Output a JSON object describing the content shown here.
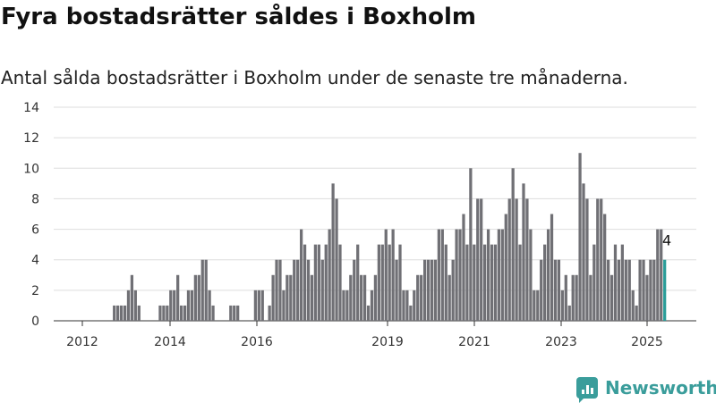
{
  "title": "Fyra bostadsrätter såldes i Boxholm",
  "subtitle": "Antal sålda bostadsrätter i Boxholm under de senaste tre månaderna.",
  "logo": {
    "text": "Newsworthy",
    "icon": "newsworthy-logo-icon"
  },
  "colors": {
    "bar": "#707075",
    "highlight": "#2a9d99",
    "grid": "#dddddd",
    "axis": "#333333"
  },
  "chart_data": {
    "type": "bar",
    "xlabel": "",
    "ylabel": "",
    "ylim": [
      0,
      14
    ],
    "yticks": [
      0,
      2,
      4,
      6,
      8,
      10,
      12,
      14
    ],
    "xticks": [
      "2012",
      "2014",
      "2016",
      "2019",
      "2021",
      "2023",
      "2025"
    ],
    "grid": true,
    "annotation": {
      "text": "4",
      "target": "last"
    },
    "highlight": "last",
    "series": [
      {
        "values": [
          0,
          0,
          0,
          0,
          0,
          0,
          0,
          0,
          0,
          0,
          0,
          0,
          0,
          0,
          0,
          0,
          1,
          1,
          1,
          1,
          2,
          3,
          2,
          1,
          0,
          0,
          0,
          0,
          0,
          1,
          1,
          1,
          2,
          2,
          3,
          1,
          1,
          2,
          2,
          3,
          3,
          4,
          4,
          2,
          1,
          0,
          0,
          0,
          0,
          1,
          1,
          1,
          0,
          0,
          0,
          0,
          2,
          2,
          2,
          0,
          1,
          3,
          4,
          4,
          2,
          3,
          3,
          4,
          4,
          6,
          5,
          4,
          3,
          5,
          5,
          4,
          5,
          6,
          9,
          8,
          5,
          2,
          2,
          3,
          4,
          5,
          3,
          3,
          1,
          2,
          3,
          5,
          5,
          6,
          5,
          6,
          4,
          5,
          2,
          2,
          1,
          2,
          3,
          3,
          4,
          4,
          4,
          4,
          6,
          6,
          5,
          3,
          4,
          6,
          6,
          7,
          5,
          10,
          5,
          8,
          8,
          5,
          6,
          5,
          5,
          6,
          6,
          7,
          8,
          10,
          8,
          5,
          9,
          8,
          6,
          2,
          2,
          4,
          5,
          6,
          7,
          4,
          4,
          2,
          3,
          1,
          3,
          3,
          11,
          9,
          8,
          3,
          5,
          8,
          8,
          7,
          4,
          3,
          5,
          4,
          5,
          4,
          4,
          2,
          1,
          4,
          4,
          3,
          4,
          4,
          6,
          6,
          4
        ]
      }
    ]
  }
}
